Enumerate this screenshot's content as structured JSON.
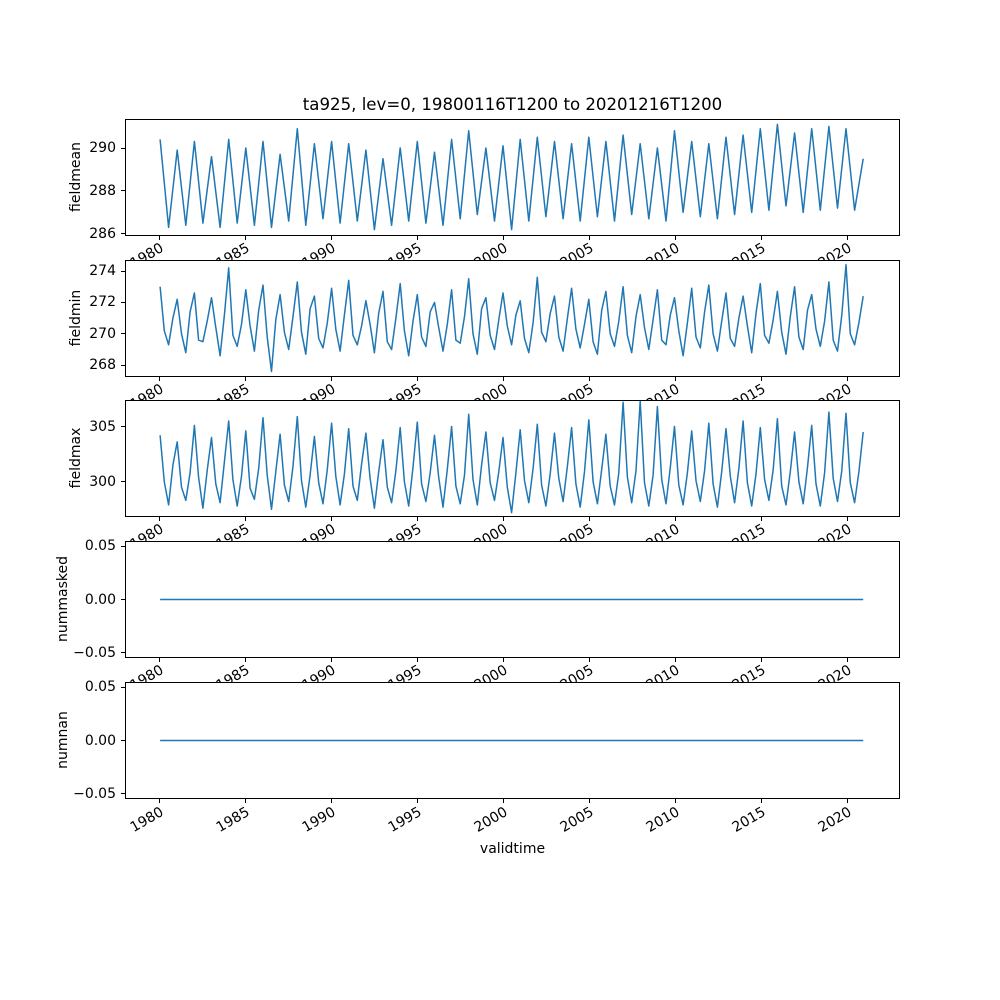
{
  "figure": {
    "title": "ta925, lev=0, 19800116T1200 to 20201216T1200",
    "line_color": "#1f77b4",
    "axis_color": "#000000",
    "background_color": "#ffffff"
  },
  "x_axis": {
    "label": "validtime",
    "xlim": [
      1978.0,
      2023.1
    ],
    "ticks": [
      1980,
      1985,
      1990,
      1995,
      2000,
      2005,
      2010,
      2015,
      2020
    ],
    "tick_labels": [
      "1980",
      "1985",
      "1990",
      "1995",
      "2000",
      "2005",
      "2010",
      "2015",
      "2020"
    ]
  },
  "chart_data": [
    {
      "type": "line",
      "ylabel": "fieldmean",
      "ylim": [
        285.9,
        291.35
      ],
      "yticks": [
        286,
        288,
        290
      ],
      "ytick_labels": [
        "286",
        "288",
        "290"
      ],
      "x_start": 1980.04,
      "x_step": 0.499,
      "y": [
        290.4,
        286.3,
        289.9,
        286.4,
        290.3,
        286.5,
        289.6,
        286.3,
        290.4,
        286.5,
        290.0,
        286.4,
        290.3,
        286.3,
        289.7,
        286.6,
        290.9,
        286.4,
        290.2,
        286.7,
        290.3,
        286.5,
        290.2,
        286.6,
        289.9,
        286.2,
        289.5,
        286.4,
        290.0,
        286.6,
        290.3,
        286.5,
        289.8,
        286.4,
        290.4,
        286.7,
        290.8,
        286.9,
        290.0,
        286.6,
        290.1,
        286.2,
        290.4,
        286.6,
        290.5,
        286.8,
        290.3,
        286.7,
        290.2,
        286.6,
        290.5,
        286.8,
        290.3,
        286.6,
        290.6,
        286.9,
        290.2,
        286.7,
        290.0,
        286.6,
        290.8,
        287.0,
        290.3,
        286.8,
        290.2,
        286.7,
        290.5,
        286.9,
        290.6,
        287.0,
        290.9,
        287.1,
        291.1,
        287.3,
        290.7,
        287.0,
        290.9,
        287.1,
        291.0,
        287.2,
        290.9,
        287.1,
        289.5
      ]
    },
    {
      "type": "line",
      "ylabel": "fieldmin",
      "ylim": [
        267.25,
        274.7
      ],
      "yticks": [
        268,
        270,
        272,
        274
      ],
      "ytick_labels": [
        "268",
        "270",
        "272",
        "274"
      ],
      "x_start": 1980.04,
      "x_step": 0.2495,
      "y": [
        273.0,
        270.2,
        269.3,
        271.0,
        272.2,
        270.0,
        268.8,
        271.4,
        272.6,
        269.6,
        269.5,
        270.8,
        272.3,
        270.4,
        268.6,
        271.2,
        274.2,
        269.9,
        269.2,
        270.6,
        272.8,
        270.5,
        268.9,
        271.5,
        273.1,
        269.8,
        267.6,
        270.9,
        272.5,
        270.1,
        269.0,
        271.1,
        273.3,
        270.1,
        268.7,
        271.6,
        272.4,
        269.7,
        269.1,
        270.7,
        272.9,
        270.3,
        268.9,
        271.2,
        273.4,
        269.9,
        269.3,
        270.5,
        272.1,
        270.6,
        268.8,
        271.3,
        272.7,
        269.5,
        269.0,
        271.0,
        273.2,
        270.2,
        268.6,
        270.8,
        272.5,
        269.8,
        269.2,
        271.4,
        272.0,
        270.4,
        268.9,
        270.6,
        272.8,
        269.6,
        269.4,
        271.1,
        273.5,
        270.0,
        268.7,
        271.6,
        272.3,
        269.9,
        269.0,
        270.9,
        272.6,
        270.5,
        269.3,
        271.2,
        272.1,
        269.7,
        268.8,
        270.7,
        273.6,
        270.1,
        269.5,
        271.3,
        272.4,
        269.8,
        268.9,
        271.0,
        272.9,
        270.3,
        269.1,
        270.6,
        272.2,
        269.5,
        268.7,
        271.5,
        272.7,
        270.0,
        269.2,
        270.8,
        273.0,
        269.9,
        268.8,
        271.1,
        272.5,
        270.4,
        269.0,
        270.9,
        272.8,
        269.6,
        269.3,
        271.2,
        272.3,
        270.2,
        268.6,
        270.7,
        272.9,
        269.8,
        269.1,
        271.4,
        273.1,
        270.0,
        268.9,
        270.8,
        272.6,
        269.7,
        269.2,
        271.0,
        272.4,
        270.5,
        268.8,
        271.3,
        273.2,
        269.9,
        269.4,
        270.9,
        272.7,
        270.1,
        268.7,
        271.1,
        273.0,
        269.8,
        269.0,
        271.5,
        272.5,
        270.3,
        269.2,
        270.8,
        273.3,
        269.6,
        268.9,
        271.2,
        274.4,
        270.0,
        269.3,
        270.7,
        272.4
      ]
    },
    {
      "type": "line",
      "ylabel": "fieldmax",
      "ylim": [
        296.8,
        307.4
      ],
      "yticks": [
        300,
        305
      ],
      "ytick_labels": [
        "300",
        "305"
      ],
      "x_start": 1980.04,
      "x_step": 0.2495,
      "y": [
        304.2,
        300.0,
        297.9,
        301.5,
        303.6,
        299.5,
        298.3,
        300.8,
        305.1,
        300.4,
        297.6,
        301.0,
        304.0,
        299.8,
        298.1,
        301.8,
        305.5,
        300.2,
        297.8,
        300.5,
        304.6,
        299.4,
        298.4,
        301.2,
        305.8,
        300.6,
        297.5,
        300.9,
        304.3,
        299.7,
        298.2,
        301.4,
        305.9,
        300.1,
        297.7,
        300.6,
        304.1,
        299.9,
        298.0,
        301.1,
        305.3,
        300.5,
        297.9,
        300.7,
        304.8,
        299.6,
        298.3,
        301.6,
        304.4,
        300.3,
        297.6,
        300.9,
        303.8,
        299.5,
        298.1,
        301.0,
        304.9,
        300.0,
        297.8,
        301.3,
        305.4,
        299.8,
        298.2,
        300.8,
        304.2,
        300.4,
        297.7,
        301.1,
        305.0,
        299.6,
        298.0,
        300.6,
        306.1,
        300.2,
        297.9,
        301.5,
        304.5,
        299.9,
        298.3,
        300.9,
        304.0,
        299.5,
        297.2,
        300.8,
        304.7,
        300.1,
        298.1,
        301.2,
        305.2,
        299.7,
        297.8,
        300.7,
        304.4,
        300.3,
        298.2,
        301.4,
        304.9,
        299.8,
        297.7,
        300.9,
        305.6,
        300.0,
        298.0,
        301.1,
        304.3,
        299.6,
        297.9,
        300.8,
        307.2,
        300.4,
        298.1,
        301.0,
        307.3,
        299.9,
        297.8,
        300.6,
        306.8,
        300.2,
        298.0,
        301.3,
        305.0,
        299.7,
        297.9,
        300.8,
        304.6,
        300.1,
        298.2,
        301.0,
        305.3,
        299.8,
        297.7,
        300.9,
        304.8,
        300.5,
        298.1,
        301.2,
        305.5,
        299.9,
        297.8,
        300.7,
        304.9,
        300.2,
        298.3,
        301.1,
        305.7,
        299.6,
        297.9,
        300.9,
        304.5,
        300.0,
        298.0,
        301.3,
        305.1,
        299.8,
        297.8,
        300.8,
        306.3,
        300.3,
        298.2,
        301.0,
        306.2,
        299.9,
        298.1,
        300.9,
        304.5
      ]
    },
    {
      "type": "line",
      "ylabel": "nummasked",
      "ylim": [
        -0.055,
        0.055
      ],
      "yticks": [
        0.05,
        0.0,
        -0.05
      ],
      "ytick_labels": [
        "0.05",
        "0.00",
        "−0.05"
      ],
      "x": [
        1980.04,
        2020.96
      ],
      "y": [
        0,
        0
      ]
    },
    {
      "type": "line",
      "ylabel": "numnan",
      "ylim": [
        -0.055,
        0.055
      ],
      "yticks": [
        0.05,
        0.0,
        -0.05
      ],
      "ytick_labels": [
        "0.05",
        "0.00",
        "−0.05"
      ],
      "x": [
        1980.04,
        2020.96
      ],
      "y": [
        0,
        0
      ]
    }
  ]
}
